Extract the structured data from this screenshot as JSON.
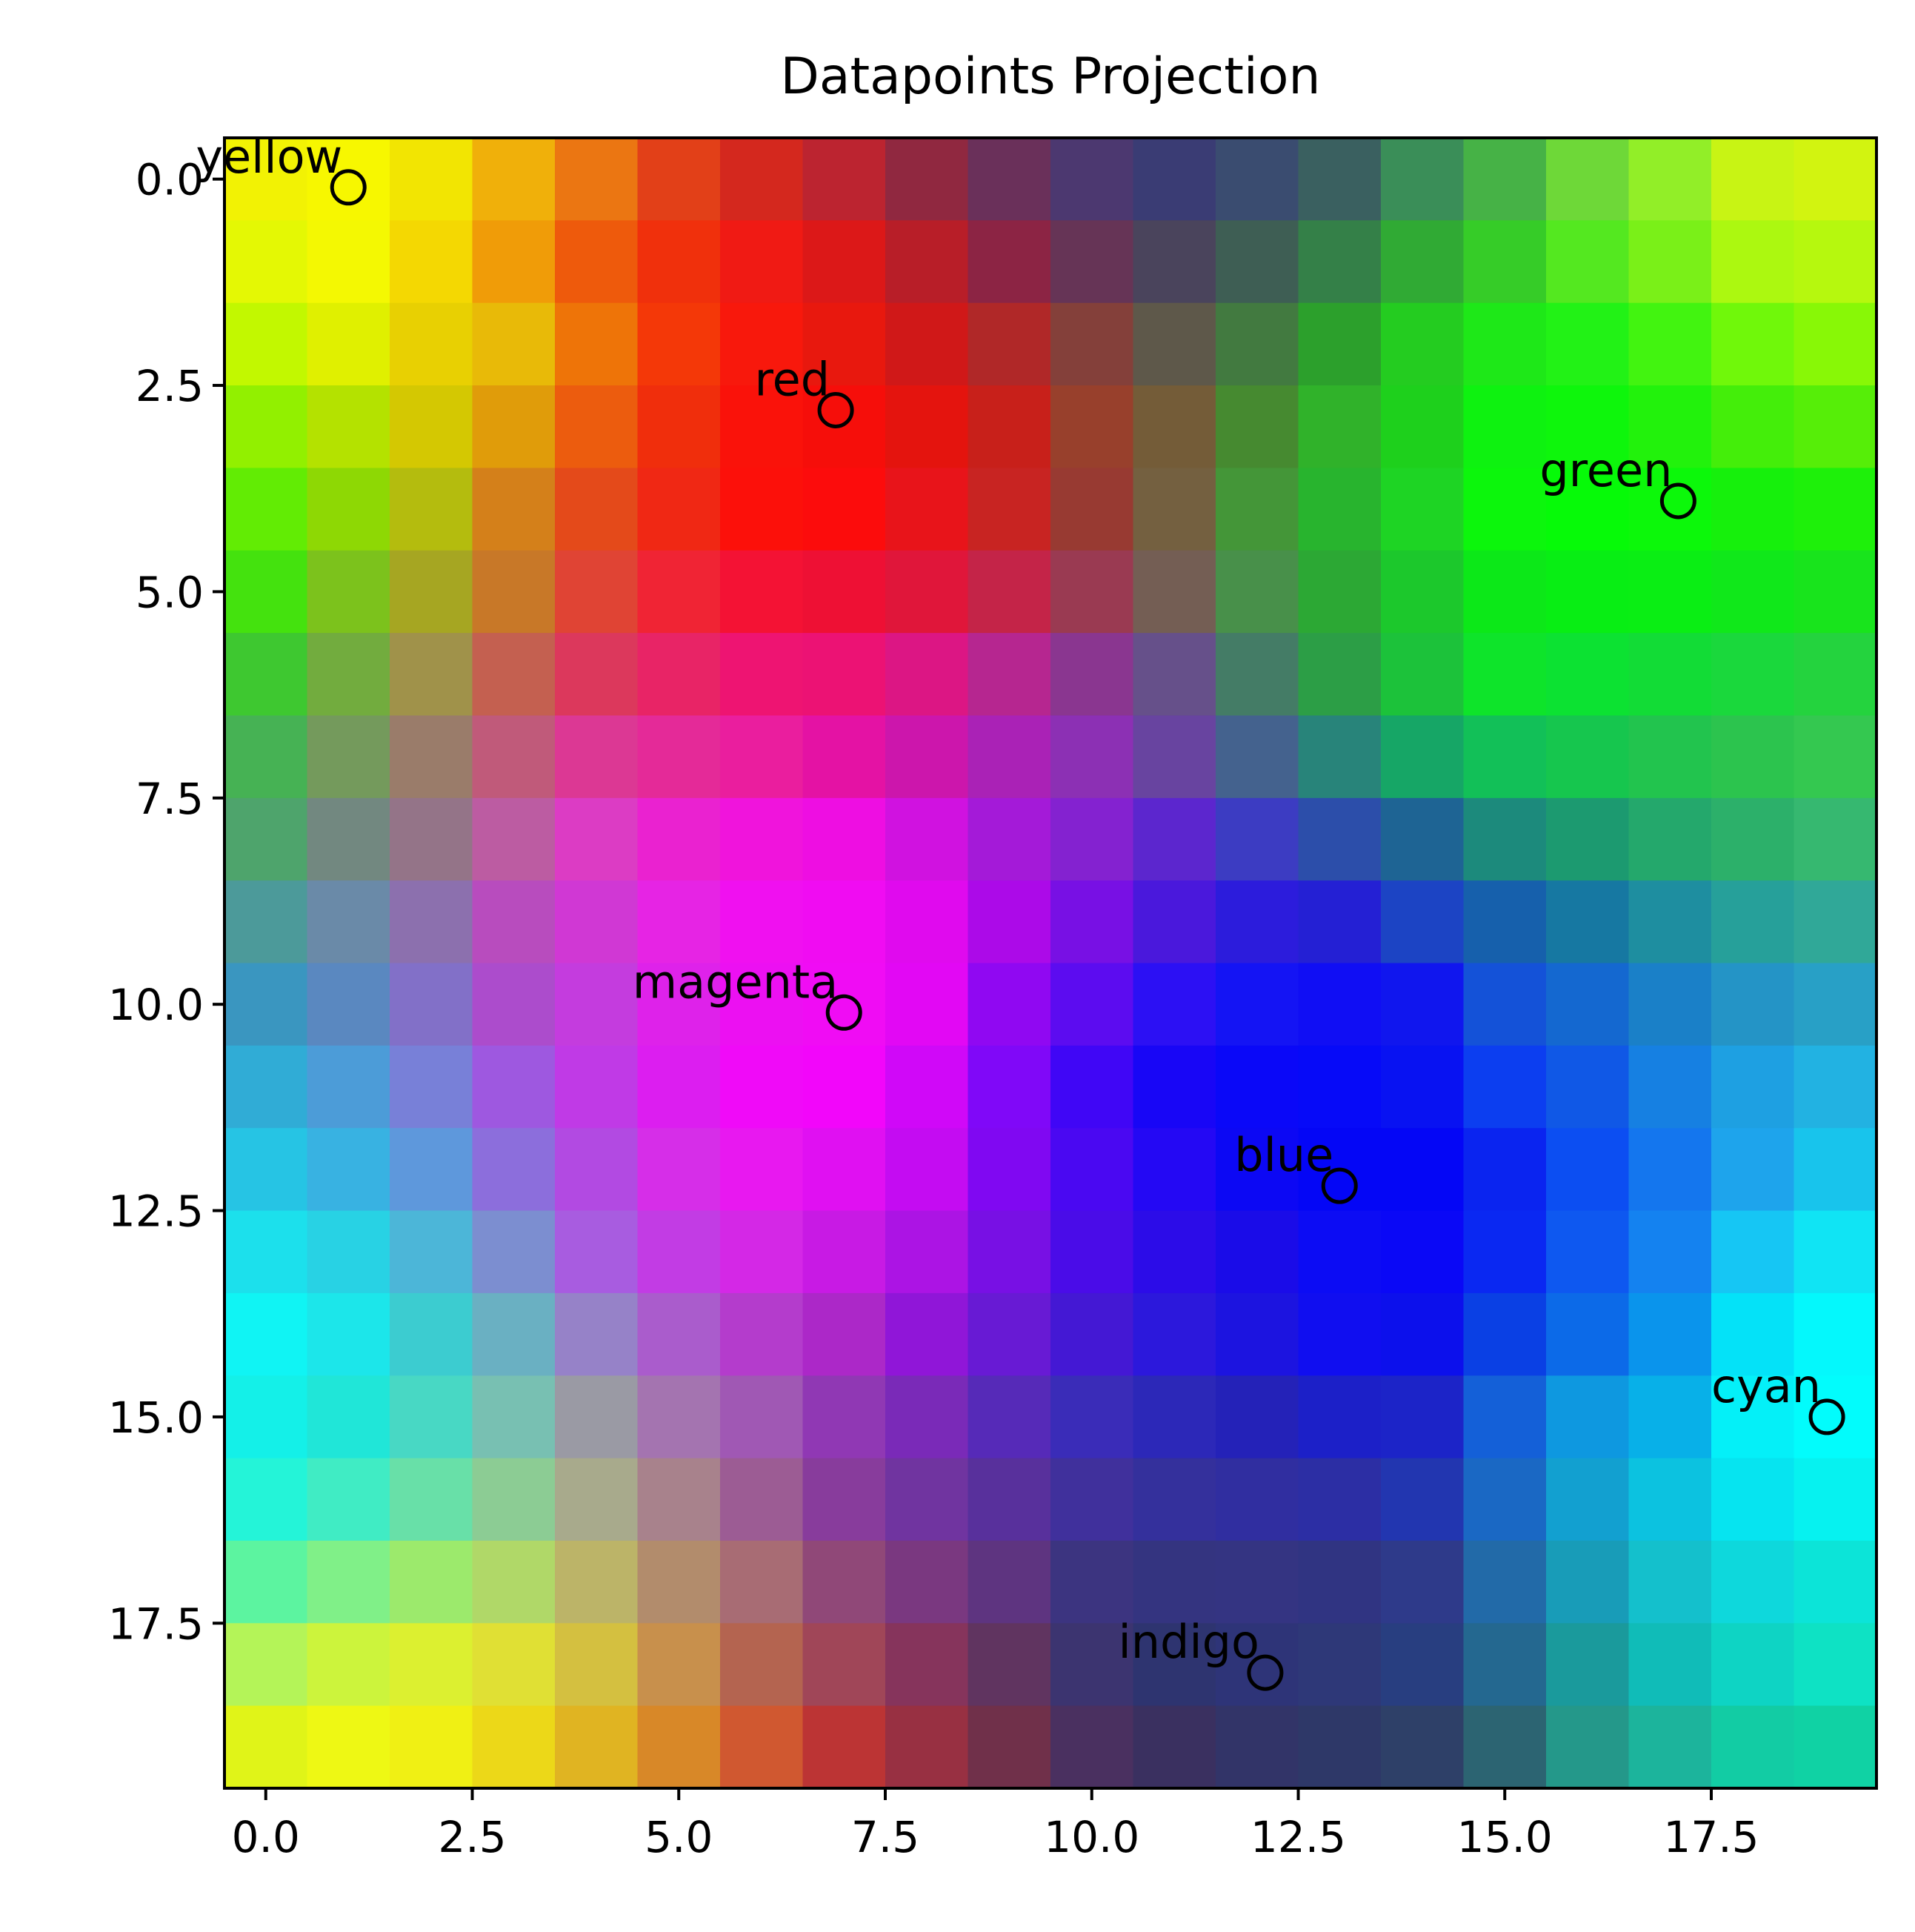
{
  "chart_data": {
    "type": "heatmap",
    "title": "Datapoints Projection",
    "xlabel": "",
    "ylabel": "",
    "grid": false,
    "xlim": [
      -0.5,
      19.5
    ],
    "ylim": [
      19.5,
      -0.5
    ],
    "y_inverted": true,
    "x_ticks": [
      "0.0",
      "2.5",
      "5.0",
      "7.5",
      "10.0",
      "12.5",
      "15.0",
      "17.5"
    ],
    "y_ticks": [
      "0.0",
      "2.5",
      "5.0",
      "7.5",
      "10.0",
      "12.5",
      "15.0",
      "17.5"
    ],
    "x_tick_values": [
      0,
      2.5,
      5,
      7.5,
      10,
      12.5,
      15,
      17.5
    ],
    "y_tick_values": [
      0,
      2.5,
      5,
      7.5,
      10,
      12.5,
      15,
      17.5
    ],
    "grid_size": [
      20,
      20
    ],
    "cell_encoding": "RGB color per cell, rows top to bottom",
    "cells": [
      [
        "#f2f204",
        "#f7f700",
        "#f2e502",
        "#f0b00a",
        "#eb7612",
        "#e24018",
        "#d4281e",
        "#bc2430",
        "#902840",
        "#6a305a",
        "#4c3870",
        "#3a3c74",
        "#3a4c70",
        "#3a6060",
        "#3a8e58",
        "#46b246",
        "#6ed838",
        "#92ee28",
        "#c8f414",
        "#d2f410"
      ],
      [
        "#e4f804",
        "#f4f802",
        "#f4d802",
        "#f09c08",
        "#ee5a0c",
        "#f0300c",
        "#f01a14",
        "#dc1818",
        "#b81e28",
        "#8c2444",
        "#663456",
        "#4a445c",
        "#3e5e54",
        "#348048",
        "#30aa34",
        "#36cc28",
        "#54e820",
        "#7af018",
        "#acf810",
        "#b6f80e"
      ],
      [
        "#c2f800",
        "#e0f000",
        "#e8d002",
        "#e8ba08",
        "#ee7408",
        "#f43808",
        "#f8180c",
        "#e8180e",
        "#d01818",
        "#b02828",
        "#84403a",
        "#5e584a",
        "#427a40",
        "#2ca02c",
        "#24cc20",
        "#1ee818",
        "#22f216",
        "#42f410",
        "#70f80a",
        "#88f806"
      ],
      [
        "#92f000",
        "#b4e200",
        "#d4c802",
        "#e09c0a",
        "#ec5c0e",
        "#f02e0c",
        "#fa120a",
        "#f60e0a",
        "#e4140e",
        "#c8201a",
        "#98402c",
        "#745c38",
        "#468a30",
        "#30b22a",
        "#1ed01c",
        "#0ef210",
        "#0ef60c",
        "#22f20c",
        "#44ee0a",
        "#56ee08"
      ],
      [
        "#62ec04",
        "#8ed804",
        "#b4bc0e",
        "#d4801a",
        "#e44a1a",
        "#f02814",
        "#fc100a",
        "#fc0c0c",
        "#e8141a",
        "#c82422",
        "#983a32",
        "#746040",
        "#449638",
        "#28b42e",
        "#1ed424",
        "#0cf60c",
        "#06fa08",
        "#0cf80a",
        "#16f00c",
        "#1ef00a"
      ],
      [
        "#44e20e",
        "#7cc21c",
        "#a6a622",
        "#c87828",
        "#e04434",
        "#f02434",
        "#f41234",
        "#ee1034",
        "#e0163a",
        "#c42448",
        "#9a3a52",
        "#745e54",
        "#48904a",
        "#2ca834",
        "#1cc82c",
        "#0ce818",
        "#08ee14",
        "#0aee14",
        "#10e81a",
        "#18e41c"
      ],
      [
        "#3ec830",
        "#72ac3e",
        "#a0924a",
        "#c46050",
        "#dc385c",
        "#e82466",
        "#ee1472",
        "#ec1274",
        "#dc1684",
        "#b62690",
        "#8a3690",
        "#66508a",
        "#447c66",
        "#2c9e46",
        "#1cc23a",
        "#0ee42a",
        "#0ce232",
        "#12dc36",
        "#1ad83c",
        "#24d33e"
      ],
      [
        "#46b254",
        "#749a5c",
        "#9a7c6a",
        "#c05a7a",
        "#dc3894",
        "#e42a98",
        "#ea1e9e",
        "#e412a4",
        "#cc16ac",
        "#aa22b6",
        "#8c30b4",
        "#6844a0",
        "#44628e",
        "#28847a",
        "#16a666",
        "#12c058",
        "#16c64e",
        "#22c44e",
        "#2cc44e",
        "#34c850"
      ],
      [
        "#4ea46c",
        "#728880",
        "#947488",
        "#bc5ca2",
        "#dc3cc4",
        "#ea22d0",
        "#f014dc",
        "#ee0ee2",
        "#d012e0",
        "#a41ad8",
        "#8422d0",
        "#5c26ce",
        "#3c3cc2",
        "#2c4eaa",
        "#1e6494",
        "#1c8a7c",
        "#1c9a70",
        "#24a86c",
        "#2cb06a",
        "#36b870"
      ],
      [
        "#4c9a9a",
        "#6a8aa8",
        "#8c70ae",
        "#b84cbe",
        "#d038d4",
        "#e624e4",
        "#f010f0",
        "#f00cf2",
        "#e00aee",
        "#ac0ae8",
        "#7810e4",
        "#4a18dc",
        "#2c1cdc",
        "#2420d4",
        "#1c44c4",
        "#1660ac",
        "#1678a2",
        "#1e8ea0",
        "#26a09a",
        "#30a898"
      ],
      [
        "#3a96c0",
        "#5a88c0",
        "#8270c8",
        "#ac4ccc",
        "#c43cde",
        "#de22ea",
        "#ec10f2",
        "#f00cf4",
        "#e208f4",
        "#9008f2",
        "#5c0cf0",
        "#2c10f4",
        "#1414f4",
        "#100ef4",
        "#1016ee",
        "#1452d8",
        "#1468d0",
        "#1a80c8",
        "#2494c6",
        "#28a0c6"
      ],
      [
        "#30acd6",
        "#4c9cd8",
        "#7880d8",
        "#9e58e0",
        "#c03ae6",
        "#dc1ef0",
        "#f00af8",
        "#f206fa",
        "#d008f8",
        "#8008f8",
        "#4006f6",
        "#1806f6",
        "#0a08f8",
        "#060af8",
        "#0812f2",
        "#0c3ef0",
        "#1058e6",
        "#1680e2",
        "#1ea0e2",
        "#22b2e2"
      ],
      [
        "#26c4e4",
        "#38b2e2",
        "#5e98dc",
        "#8c6edc",
        "#b24ae2",
        "#d62ee8",
        "#e818f0",
        "#e010f2",
        "#c40cf2",
        "#8008f2",
        "#4a08f2",
        "#2408f4",
        "#0c08f4",
        "#0406f6",
        "#0406f6",
        "#0a24f0",
        "#0c4ef2",
        "#1476ee",
        "#1ea4ec",
        "#18c4ec"
      ],
      [
        "#1ce0ec",
        "#28d2e4",
        "#4cb6d8",
        "#7c8ed0",
        "#a85ce0",
        "#c23ce4",
        "#d428e6",
        "#c81ae4",
        "#ac14e4",
        "#7810e4",
        "#4a0ce8",
        "#2c0ce8",
        "#1a0ce8",
        "#0c0cf4",
        "#0a08f6",
        "#0a28f2",
        "#0e58f0",
        "#1482f0",
        "#16c6f4",
        "#10e4f4"
      ],
      [
        "#10f4f4",
        "#1ce6ea",
        "#3cccd0",
        "#6ab0c2",
        "#9682c8",
        "#aa5ccc",
        "#b43ccc",
        "#ac28c8",
        "#9016d8",
        "#681ad4",
        "#4418d4",
        "#2c18dc",
        "#1c14e0",
        "#100ef0",
        "#0c10ec",
        "#0a40e4",
        "#0c6ae8",
        "#0a94ec",
        "#04e2f8",
        "#04f8fc"
      ],
      [
        "#14f0e8",
        "#20e6d8",
        "#48d8c4",
        "#78c0b2",
        "#9a9aa4",
        "#a474b0",
        "#a058b4",
        "#9038b4",
        "#7a2ab8",
        "#562ab8",
        "#3a2cb8",
        "#2c28b8",
        "#2422b8",
        "#1c20c8",
        "#1c24c8",
        "#1460d8",
        "#0e98e0",
        "#08b0e8",
        "#04f0f8",
        "#02fcfc"
      ],
      [
        "#24f4d8",
        "#40ecc4",
        "#68e0a8",
        "#8ccc94",
        "#a8aa8c",
        "#a8828c",
        "#9c5c94",
        "#883c9c",
        "#7034a0",
        "#58309c",
        "#40309c",
        "#34309c",
        "#302ea0",
        "#2c2ea4",
        "#2236b0",
        "#1a68c4",
        "#12a0d0",
        "#0cc2e0",
        "#06e4f0",
        "#06f2f0"
      ],
      [
        "#5cf4a0",
        "#80f088",
        "#9cea6c",
        "#b0d868",
        "#bcb468",
        "#b28c6c",
        "#a86c74",
        "#904878",
        "#7a3880",
        "#5e3480",
        "#3c3480",
        "#343480",
        "#343482",
        "#303482",
        "#2e3a8a",
        "#226aa8",
        "#189cb8",
        "#14c0cc",
        "#0ed8dc",
        "#0ce4d8"
      ],
      [
        "#b4f458",
        "#ccf43c",
        "#dcf030",
        "#e0e034",
        "#d4c040",
        "#c8904c",
        "#b46450",
        "#a04658",
        "#86345c",
        "#603460",
        "#3c3470",
        "#2e3470",
        "#2e3478",
        "#2e3878",
        "#283e80",
        "#246890",
        "#1a9a9c",
        "#10bcb8",
        "#0ed4c4",
        "#0ee2c4"
      ],
      [
        "#e0f418",
        "#eef814",
        "#f0f014",
        "#ecd818",
        "#e0b422",
        "#d88828",
        "#d05830",
        "#bc3434",
        "#983042",
        "#70304a",
        "#4a3060",
        "#3a3060",
        "#323468",
        "#2e3868",
        "#2e4068",
        "#2c6472",
        "#24988a",
        "#1cb49c",
        "#12cca4",
        "#10d2a4"
      ]
    ],
    "points": [
      {
        "label": "yellow",
        "x": 1.0,
        "y": 0.1
      },
      {
        "label": "red",
        "x": 6.9,
        "y": 2.8
      },
      {
        "label": "green",
        "x": 17.1,
        "y": 3.9
      },
      {
        "label": "magenta",
        "x": 7.0,
        "y": 10.1
      },
      {
        "label": "blue",
        "x": 13.0,
        "y": 12.2
      },
      {
        "label": "cyan",
        "x": 18.9,
        "y": 15.0
      },
      {
        "label": "indigo",
        "x": 12.1,
        "y": 18.1
      }
    ]
  }
}
